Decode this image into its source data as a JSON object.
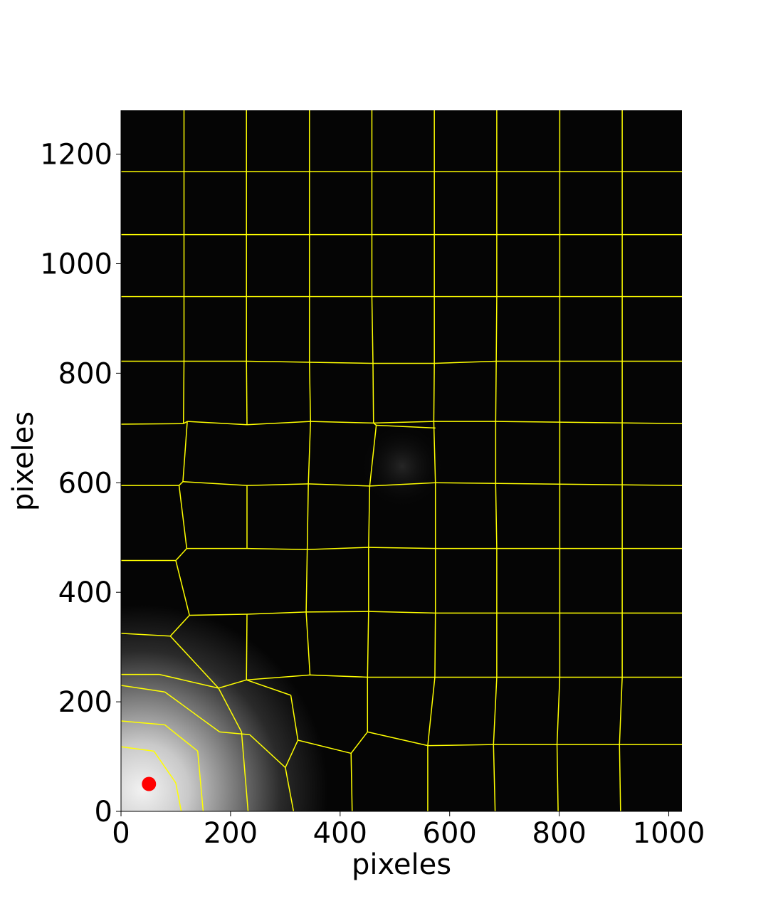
{
  "chart_data": {
    "type": "heatmap",
    "title": "",
    "xlabel": "pixeles",
    "ylabel": "pixeles",
    "xlim": [
      0,
      1024
    ],
    "ylim": [
      0,
      1280
    ],
    "x_ticks": [
      0,
      200,
      400,
      600,
      800,
      1000
    ],
    "y_ticks": [
      0,
      200,
      400,
      600,
      800,
      1000,
      1200
    ],
    "grid": false,
    "background_image": {
      "description": "grayscale intensity image, dark everywhere, bright glow near bottom-left corner",
      "bright_center": [
        30,
        30
      ],
      "faint_spot": [
        510,
        615
      ]
    },
    "marker": {
      "x": 51,
      "y": 50,
      "color": "#ff0000"
    },
    "boundary_color": "#ffff00",
    "boundaries": [
      [
        [
          115,
          1280
        ],
        [
          115,
          1168
        ]
      ],
      [
        [
          115,
          1168
        ],
        [
          115,
          1053
        ]
      ],
      [
        [
          115,
          1053
        ],
        [
          115,
          940
        ]
      ],
      [
        [
          115,
          940
        ],
        [
          115,
          822
        ]
      ],
      [
        [
          115,
          822
        ],
        [
          114,
          708
        ]
      ],
      [
        [
          229,
          1280
        ],
        [
          229,
          1168
        ]
      ],
      [
        [
          229,
          1168
        ],
        [
          229,
          1053
        ]
      ],
      [
        [
          229,
          1053
        ],
        [
          229,
          940
        ]
      ],
      [
        [
          229,
          940
        ],
        [
          229,
          822
        ]
      ],
      [
        [
          229,
          822
        ],
        [
          230,
          706
        ]
      ],
      [
        [
          344,
          1280
        ],
        [
          344,
          1168
        ]
      ],
      [
        [
          344,
          1168
        ],
        [
          344,
          1053
        ]
      ],
      [
        [
          344,
          1053
        ],
        [
          344,
          940
        ]
      ],
      [
        [
          344,
          940
        ],
        [
          344,
          820
        ]
      ],
      [
        [
          344,
          820
        ],
        [
          346,
          712
        ]
      ],
      [
        [
          458,
          1280
        ],
        [
          458,
          1168
        ]
      ],
      [
        [
          458,
          1168
        ],
        [
          458,
          1053
        ]
      ],
      [
        [
          458,
          1053
        ],
        [
          458,
          940
        ]
      ],
      [
        [
          458,
          940
        ],
        [
          460,
          818
        ]
      ],
      [
        [
          460,
          818
        ],
        [
          461,
          709
        ]
      ],
      [
        [
          572,
          1280
        ],
        [
          572,
          1168
        ]
      ],
      [
        [
          572,
          1168
        ],
        [
          572,
          1053
        ]
      ],
      [
        [
          572,
          1053
        ],
        [
          572,
          940
        ]
      ],
      [
        [
          572,
          940
        ],
        [
          572,
          818
        ]
      ],
      [
        [
          572,
          818
        ],
        [
          571,
          712
        ]
      ],
      [
        [
          686,
          1280
        ],
        [
          686,
          1168
        ]
      ],
      [
        [
          686,
          1168
        ],
        [
          686,
          1053
        ]
      ],
      [
        [
          686,
          1053
        ],
        [
          686,
          940
        ]
      ],
      [
        [
          686,
          940
        ],
        [
          685,
          822
        ]
      ],
      [
        [
          685,
          822
        ],
        [
          684,
          712
        ]
      ],
      [
        [
          801,
          1280
        ],
        [
          801,
          1168
        ]
      ],
      [
        [
          801,
          1168
        ],
        [
          801,
          1053
        ]
      ],
      [
        [
          801,
          1053
        ],
        [
          801,
          940
        ]
      ],
      [
        [
          801,
          940
        ],
        [
          801,
          822
        ]
      ],
      [
        [
          801,
          822
        ],
        [
          801,
          708
        ]
      ],
      [
        [
          915,
          1280
        ],
        [
          915,
          1168
        ]
      ],
      [
        [
          915,
          1168
        ],
        [
          915,
          1053
        ]
      ],
      [
        [
          915,
          1053
        ],
        [
          915,
          940
        ]
      ],
      [
        [
          915,
          940
        ],
        [
          915,
          822
        ]
      ],
      [
        [
          915,
          822
        ],
        [
          915,
          708
        ]
      ],
      [
        [
          0,
          1168
        ],
        [
          1024,
          1168
        ]
      ],
      [
        [
          0,
          1053
        ],
        [
          1024,
          1053
        ]
      ],
      [
        [
          0,
          940
        ],
        [
          1024,
          940
        ]
      ],
      [
        [
          0,
          822
        ],
        [
          115,
          822
        ]
      ],
      [
        [
          115,
          822
        ],
        [
          229,
          822
        ]
      ],
      [
        [
          229,
          822
        ],
        [
          344,
          820
        ]
      ],
      [
        [
          344,
          820
        ],
        [
          458,
          818
        ]
      ],
      [
        [
          458,
          818
        ],
        [
          572,
          818
        ]
      ],
      [
        [
          572,
          818
        ],
        [
          686,
          822
        ]
      ],
      [
        [
          686,
          822
        ],
        [
          1024,
          822
        ]
      ],
      [
        [
          0,
          707
        ],
        [
          114,
          708
        ]
      ],
      [
        [
          114,
          708
        ],
        [
          121,
          712
        ]
      ],
      [
        [
          121,
          712
        ],
        [
          230,
          706
        ]
      ],
      [
        [
          230,
          706
        ],
        [
          346,
          712
        ]
      ],
      [
        [
          346,
          712
        ],
        [
          461,
          709
        ]
      ],
      [
        [
          461,
          709
        ],
        [
          571,
          712
        ]
      ],
      [
        [
          571,
          712
        ],
        [
          684,
          712
        ]
      ],
      [
        [
          684,
          712
        ],
        [
          1024,
          708
        ]
      ],
      [
        [
          121,
          712
        ],
        [
          113,
          602
        ]
      ],
      [
        [
          113,
          602
        ],
        [
          106,
          595
        ]
      ],
      [
        [
          0,
          595
        ],
        [
          106,
          595
        ]
      ],
      [
        [
          461,
          709
        ],
        [
          466,
          705
        ]
      ],
      [
        [
          466,
          705
        ],
        [
          454,
          594
        ]
      ],
      [
        [
          571,
          712
        ],
        [
          574,
          600
        ]
      ],
      [
        [
          466,
          705
        ],
        [
          574,
          700
        ]
      ],
      [
        [
          113,
          602
        ],
        [
          230,
          595
        ]
      ],
      [
        [
          230,
          595
        ],
        [
          342,
          598
        ]
      ],
      [
        [
          342,
          598
        ],
        [
          454,
          594
        ]
      ],
      [
        [
          454,
          594
        ],
        [
          574,
          600
        ]
      ],
      [
        [
          574,
          600
        ],
        [
          1024,
          595
        ]
      ],
      [
        [
          346,
          712
        ],
        [
          342,
          598
        ]
      ],
      [
        [
          342,
          598
        ],
        [
          340,
          478
        ]
      ],
      [
        [
          230,
          595
        ],
        [
          230,
          480
        ]
      ],
      [
        [
          454,
          594
        ],
        [
          452,
          482
        ]
      ],
      [
        [
          574,
          600
        ],
        [
          574,
          480
        ]
      ],
      [
        [
          106,
          595
        ],
        [
          120,
          480
        ]
      ],
      [
        [
          120,
          480
        ],
        [
          230,
          480
        ]
      ],
      [
        [
          230,
          480
        ],
        [
          340,
          478
        ]
      ],
      [
        [
          340,
          478
        ],
        [
          452,
          482
        ]
      ],
      [
        [
          452,
          482
        ],
        [
          574,
          480
        ]
      ],
      [
        [
          574,
          480
        ],
        [
          1024,
          480
        ]
      ],
      [
        [
          0,
          458
        ],
        [
          100,
          458
        ]
      ],
      [
        [
          100,
          458
        ],
        [
          120,
          480
        ]
      ],
      [
        [
          100,
          458
        ],
        [
          125,
          358
        ]
      ],
      [
        [
          125,
          358
        ],
        [
          230,
          360
        ]
      ],
      [
        [
          230,
          360
        ],
        [
          338,
          364
        ]
      ],
      [
        [
          340,
          478
        ],
        [
          338,
          364
        ]
      ],
      [
        [
          452,
          482
        ],
        [
          452,
          365
        ]
      ],
      [
        [
          574,
          480
        ],
        [
          574,
          362
        ]
      ],
      [
        [
          338,
          364
        ],
        [
          452,
          365
        ]
      ],
      [
        [
          452,
          365
        ],
        [
          574,
          362
        ]
      ],
      [
        [
          574,
          362
        ],
        [
          1024,
          362
        ]
      ],
      [
        [
          0,
          325
        ],
        [
          90,
          320
        ]
      ],
      [
        [
          90,
          320
        ],
        [
          125,
          358
        ]
      ],
      [
        [
          230,
          360
        ],
        [
          229,
          240
        ]
      ],
      [
        [
          338,
          364
        ],
        [
          345,
          249
        ]
      ],
      [
        [
          452,
          365
        ],
        [
          450,
          245
        ]
      ],
      [
        [
          574,
          362
        ],
        [
          573,
          245
        ]
      ],
      [
        [
          229,
          240
        ],
        [
          345,
          249
        ]
      ],
      [
        [
          345,
          249
        ],
        [
          450,
          245
        ]
      ],
      [
        [
          450,
          245
        ],
        [
          573,
          245
        ]
      ],
      [
        [
          573,
          245
        ],
        [
          1024,
          245
        ]
      ],
      [
        [
          0,
          250
        ],
        [
          70,
          250
        ]
      ],
      [
        [
          70,
          250
        ],
        [
          178,
          225
        ]
      ],
      [
        [
          178,
          225
        ],
        [
          229,
          240
        ]
      ],
      [
        [
          0,
          230
        ],
        [
          80,
          218
        ]
      ],
      [
        [
          80,
          218
        ],
        [
          180,
          145
        ]
      ],
      [
        [
          180,
          145
        ],
        [
          235,
          140
        ]
      ],
      [
        [
          235,
          140
        ],
        [
          300,
          80
        ]
      ],
      [
        [
          300,
          80
        ],
        [
          315,
          0
        ]
      ],
      [
        [
          90,
          320
        ],
        [
          178,
          225
        ]
      ],
      [
        [
          178,
          225
        ],
        [
          220,
          145
        ]
      ],
      [
        [
          220,
          145
        ],
        [
          232,
          0
        ]
      ],
      [
        [
          0,
          165
        ],
        [
          80,
          158
        ]
      ],
      [
        [
          80,
          158
        ],
        [
          140,
          110
        ]
      ],
      [
        [
          140,
          110
        ],
        [
          150,
          0
        ]
      ],
      [
        [
          0,
          118
        ],
        [
          60,
          110
        ]
      ],
      [
        [
          60,
          110
        ],
        [
          100,
          52
        ]
      ],
      [
        [
          100,
          52
        ],
        [
          110,
          0
        ]
      ],
      [
        [
          229,
          240
        ],
        [
          310,
          212
        ]
      ],
      [
        [
          310,
          212
        ],
        [
          323,
          130
        ]
      ],
      [
        [
          323,
          130
        ],
        [
          300,
          80
        ]
      ],
      [
        [
          323,
          130
        ],
        [
          420,
          106
        ]
      ],
      [
        [
          420,
          106
        ],
        [
          450,
          145
        ]
      ],
      [
        [
          450,
          145
        ],
        [
          450,
          245
        ]
      ],
      [
        [
          420,
          106
        ],
        [
          422,
          0
        ]
      ],
      [
        [
          450,
          145
        ],
        [
          560,
          120
        ]
      ],
      [
        [
          560,
          120
        ],
        [
          560,
          0
        ]
      ],
      [
        [
          560,
          120
        ],
        [
          573,
          245
        ]
      ],
      [
        [
          560,
          120
        ],
        [
          680,
          122
        ]
      ],
      [
        [
          680,
          122
        ],
        [
          683,
          0
        ]
      ],
      [
        [
          680,
          122
        ],
        [
          686,
          245
        ]
      ],
      [
        [
          680,
          122
        ],
        [
          1024,
          122
        ]
      ],
      [
        [
          796,
          122
        ],
        [
          798,
          0
        ]
      ],
      [
        [
          796,
          122
        ],
        [
          801,
          245
        ]
      ],
      [
        [
          910,
          122
        ],
        [
          912,
          0
        ]
      ],
      [
        [
          910,
          122
        ],
        [
          915,
          245
        ]
      ],
      [
        [
          686,
          245
        ],
        [
          686,
          362
        ]
      ],
      [
        [
          801,
          245
        ],
        [
          801,
          362
        ]
      ],
      [
        [
          915,
          245
        ],
        [
          915,
          362
        ]
      ],
      [
        [
          686,
          362
        ],
        [
          686,
          480
        ]
      ],
      [
        [
          801,
          362
        ],
        [
          801,
          480
        ]
      ],
      [
        [
          915,
          362
        ],
        [
          915,
          480
        ]
      ],
      [
        [
          686,
          480
        ],
        [
          684,
          595
        ]
      ],
      [
        [
          801,
          480
        ],
        [
          801,
          595
        ]
      ],
      [
        [
          915,
          480
        ],
        [
          915,
          595
        ]
      ],
      [
        [
          684,
          595
        ],
        [
          684,
          712
        ]
      ],
      [
        [
          801,
          595
        ],
        [
          801,
          708
        ]
      ],
      [
        [
          915,
          595
        ],
        [
          915,
          708
        ]
      ]
    ]
  }
}
